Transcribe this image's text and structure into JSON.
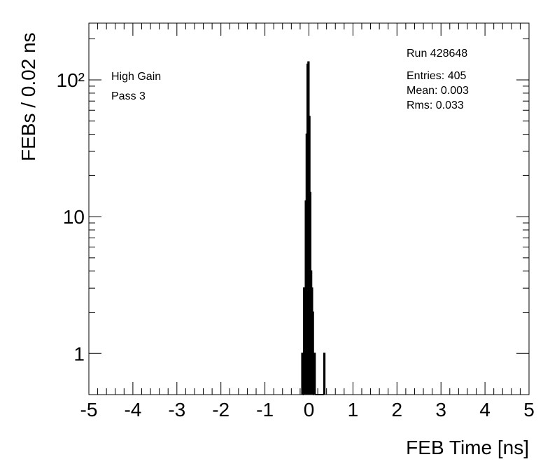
{
  "chart_data": {
    "type": "histogram",
    "x_label": "FEB Time [ns]",
    "y_label": "FEBs / 0.02 ns",
    "annotations": [
      "High Gain",
      "Pass 3"
    ],
    "stats": [
      "Run 428648",
      "Entries: 405",
      "Mean: 0.003",
      "Rms: 0.033"
    ],
    "bins": [
      -0.16,
      -0.14,
      -0.12,
      -0.1,
      -0.08,
      -0.06,
      -0.04,
      -0.02,
      0,
      0.02,
      0.04,
      0.06,
      0.08,
      0.1,
      0.12,
      0.14,
      0.16,
      0.18,
      0.2,
      0.22,
      0.24,
      0.26,
      0.28,
      0.3,
      0.32,
      0.34,
      0.36
    ],
    "values": [
      1,
      0,
      3,
      3,
      13,
      40,
      130,
      135,
      54,
      15,
      4,
      3,
      2,
      0,
      1,
      0,
      0,
      0,
      0,
      0,
      0,
      0,
      0,
      0,
      0,
      1
    ],
    "color": "#000000",
    "xlim": [
      -5,
      5
    ],
    "xticks": [
      -5,
      -4,
      -3,
      -2,
      -1,
      0,
      1,
      2,
      3,
      4,
      5
    ],
    "ylim": [
      0.5,
      260
    ],
    "log_y": true,
    "yticks": [
      1,
      10,
      {
        "value": 100,
        "label": "10²"
      }
    ]
  }
}
